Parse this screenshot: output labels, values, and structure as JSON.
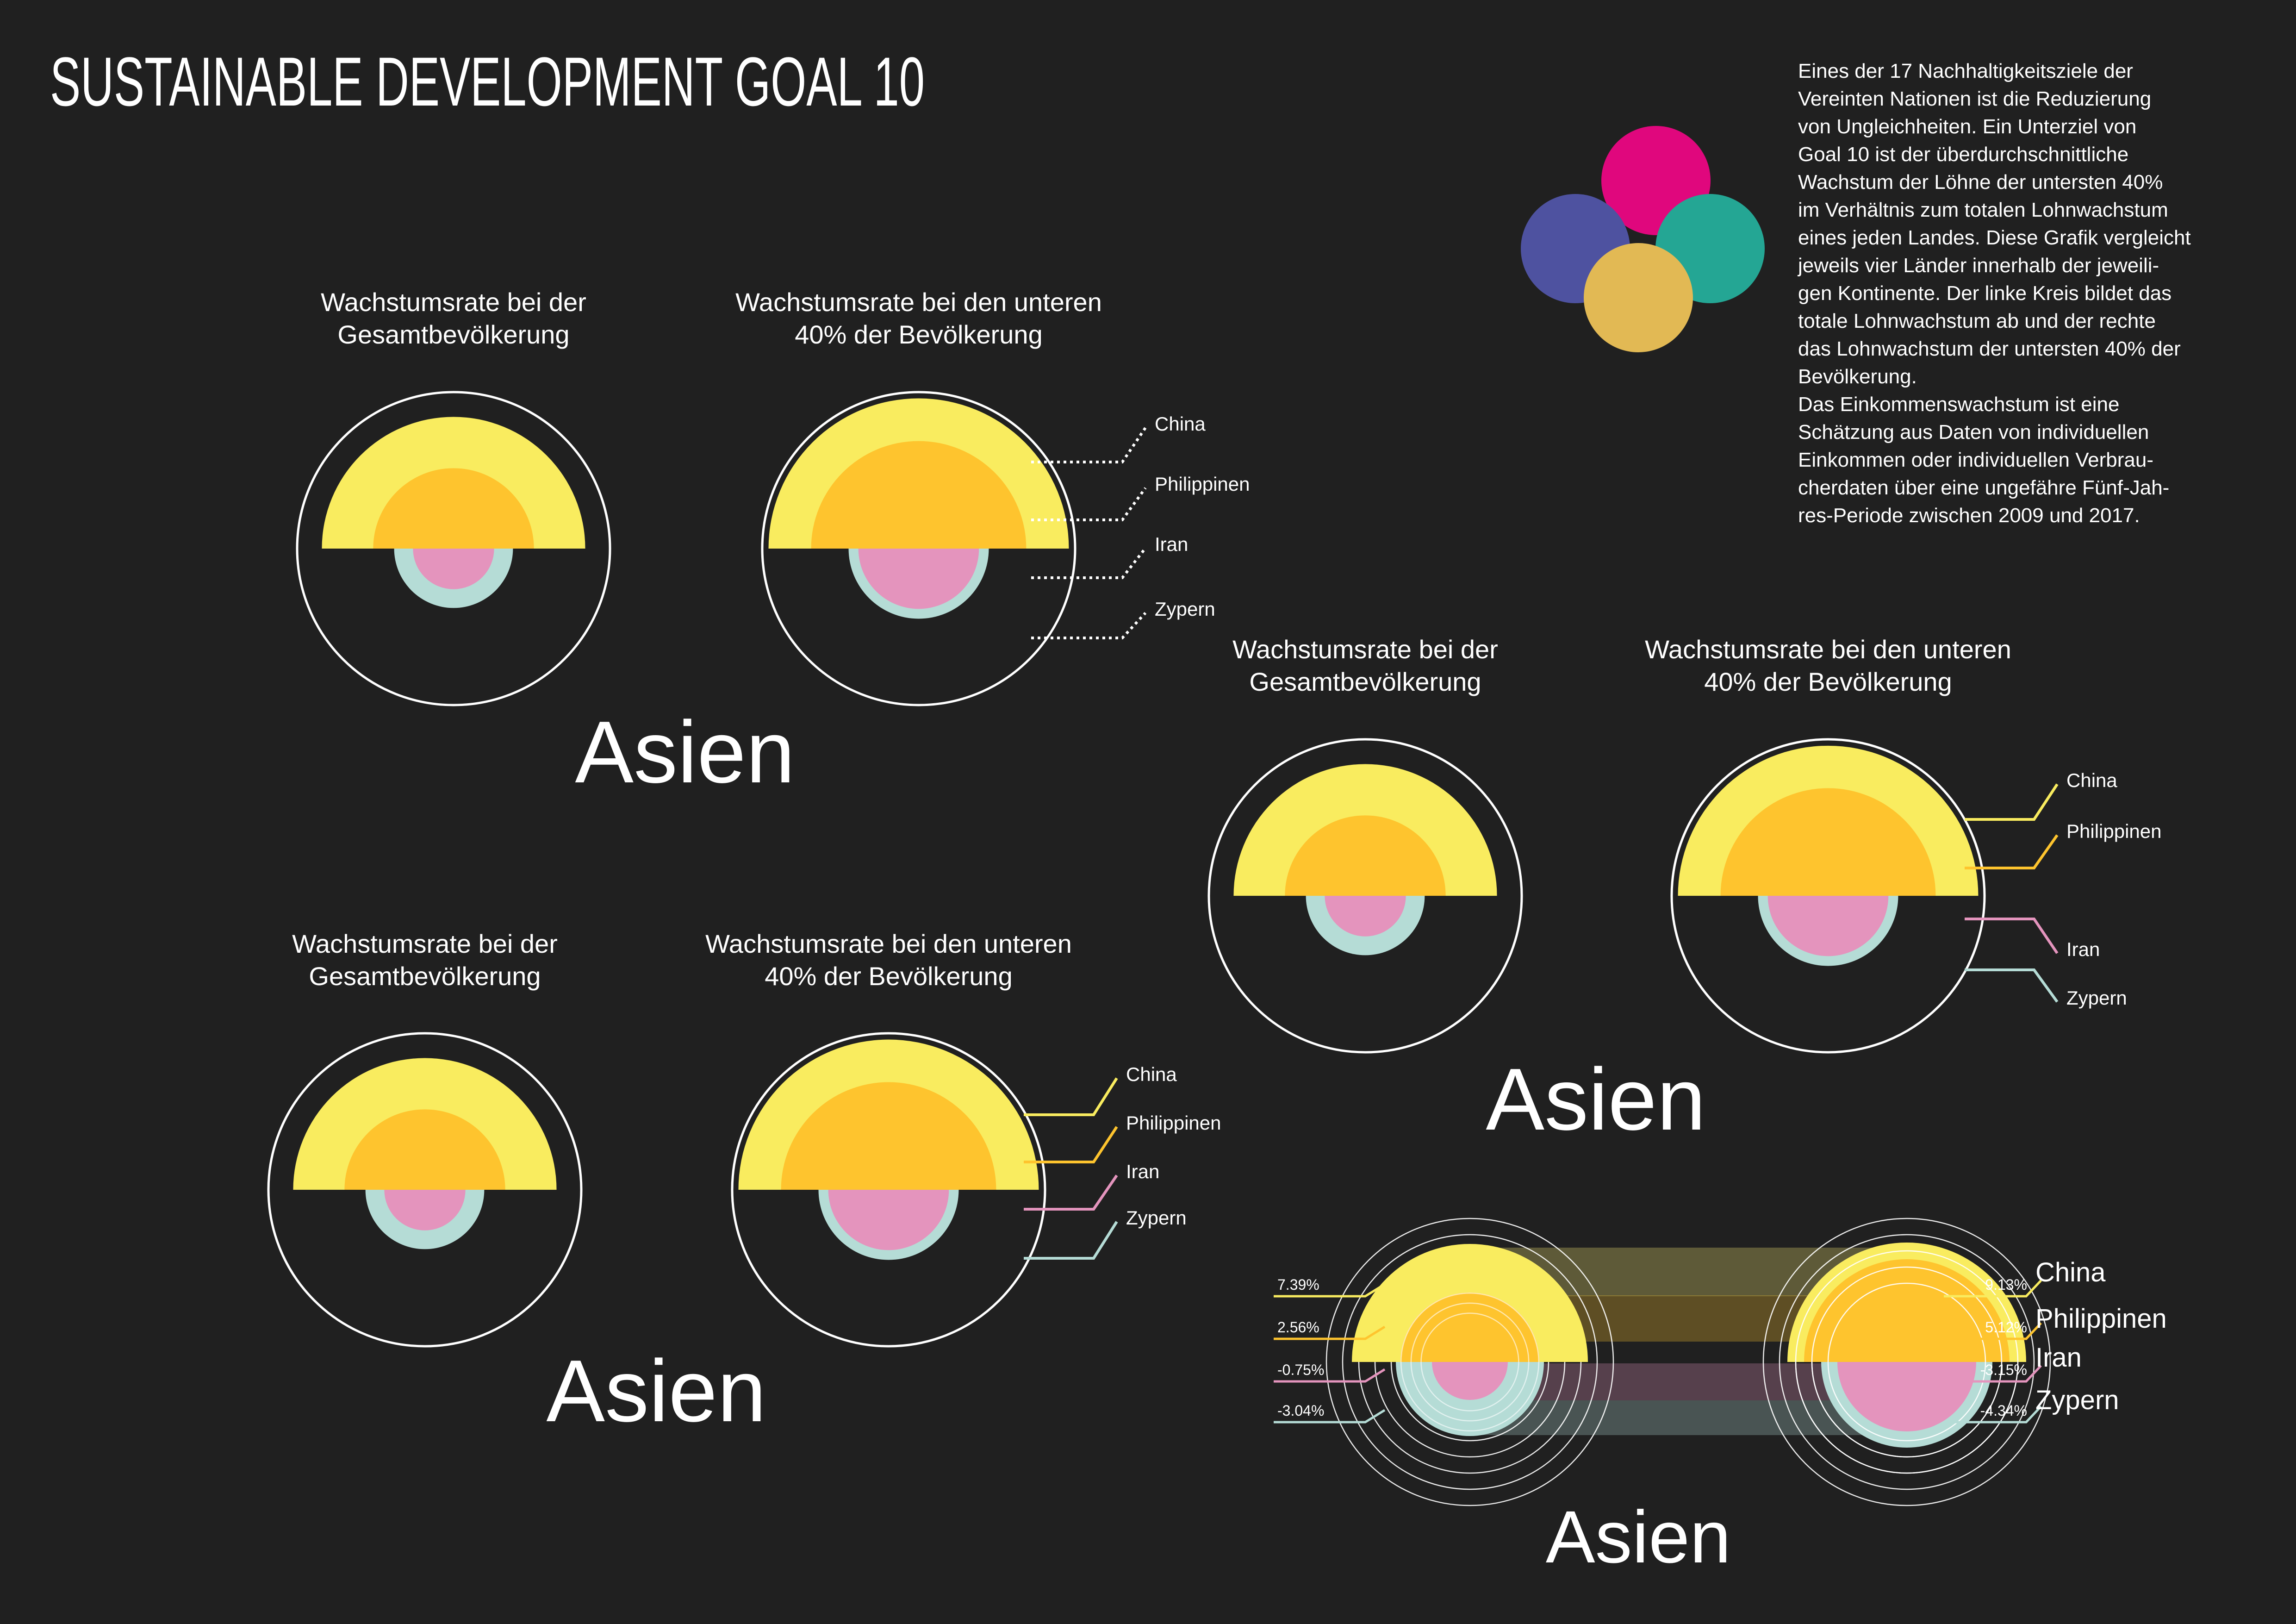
{
  "page": {
    "title": "SUSTAINABLE DEVELOPMENT GOAL 10",
    "background": "#202020"
  },
  "intro": {
    "lines": [
      "Eines der 17 Nachhaltigkeitsziele der",
      "Vereinten Nationen ist die Reduzierung",
      "von Ungleichheiten. Ein Unterziel von",
      "Goal 10 ist der überdurchschnittliche",
      "Wachstum der Löhne der untersten 40%",
      "im Verhältnis zum totalen Lohnwachstum",
      "eines jeden Landes. Diese Grafik vergleicht",
      "jeweils vier Länder innerhalb der jeweili-",
      "gen Kontinente. Der linke Kreis bildet das",
      "totale Lohnwachstum ab und der rechte",
      "das Lohnwachstum der untersten 40% der",
      "Bevölkerung.",
      "Das Einkommenswachstum ist eine",
      "Schätzung aus Daten von individuellen",
      "Einkommen oder individuellen Verbrau-",
      "cherdaten über eine ungefähre Fünf-Jah-",
      "res-Periode zwischen 2009 und 2017."
    ]
  },
  "logo": {
    "colors": [
      "#e0077d",
      "#4e52a0",
      "#24a694",
      "#e2b954"
    ]
  },
  "labels": {
    "left_heading": [
      "Wachstumsrate bei der",
      "Gesamtbevölkerung"
    ],
    "right_heading": [
      "Wachstumsrate bei den unteren",
      "40% der Bevölkerung"
    ],
    "continent": "Asien"
  },
  "colors": {
    "China": "#f9ec5f",
    "Philippinen": "#fec42e",
    "Iran": "#e494bd",
    "Zypern": "#b5dcd6",
    "outline": "#ffffff"
  },
  "chart_data": [
    {
      "type": "area",
      "continent": "Asien",
      "categories": [
        "China",
        "Philippinen",
        "Iran",
        "Zypern"
      ],
      "series": [
        {
          "name": "Wachstumsrate bei der Gesamtbevölkerung",
          "values": [
            7.39,
            2.56,
            -0.75,
            -3.04
          ]
        },
        {
          "name": "Wachstumsrate bei den unteren 40% der Bevölkerung",
          "values": [
            9.13,
            5.12,
            -3.15,
            -4.34
          ]
        }
      ]
    }
  ],
  "final_chart": {
    "left_labels": [
      "7.39%",
      "2.56%",
      "-0.75%",
      "-3.04%"
    ],
    "right_labels": [
      "9.13%",
      "5.12%",
      "-3.15%",
      "-4.34%"
    ],
    "legend": [
      "China",
      "Philippinen",
      "Iran",
      "Zypern"
    ]
  }
}
